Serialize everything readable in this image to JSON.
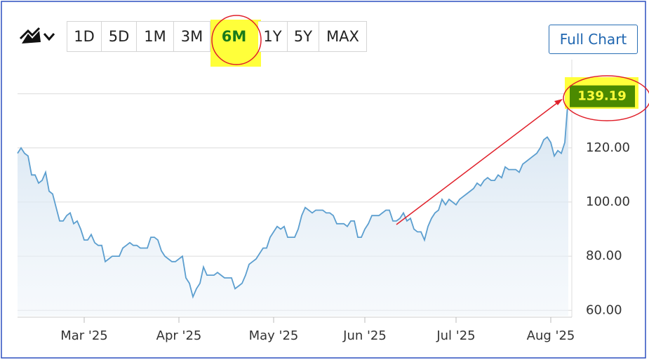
{
  "controls": {
    "ranges": [
      "1D",
      "5D",
      "1M",
      "3M",
      "6M",
      "1Y",
      "5Y",
      "MAX"
    ],
    "full_chart": "Full Chart"
  },
  "chart_data": {
    "type": "line",
    "color": "#5b9ecf",
    "categories": [
      null,
      null,
      null,
      null,
      null,
      null,
      null,
      null,
      null,
      null,
      null,
      null,
      null,
      null,
      null,
      null,
      null,
      null,
      null,
      "Mar '25",
      null,
      null,
      null,
      null,
      null,
      null,
      null,
      null,
      null,
      null,
      null,
      null,
      null,
      null,
      null,
      null,
      null,
      null,
      null,
      null,
      null,
      null,
      null,
      null,
      null,
      null,
      "Apr '25",
      null,
      null,
      null,
      null,
      null,
      null,
      null,
      null,
      null,
      null,
      null,
      null,
      null,
      null,
      null,
      null,
      null,
      null,
      null,
      null,
      null,
      null,
      null,
      null,
      null,
      null,
      "May '25",
      null,
      null,
      null,
      null,
      null,
      null,
      null,
      null,
      null,
      null,
      null,
      null,
      null,
      null,
      null,
      null,
      null,
      null,
      null,
      null,
      null,
      null,
      null,
      null,
      null,
      "Jun '25",
      null,
      null,
      null,
      null,
      null,
      null,
      null,
      null,
      null,
      null,
      null,
      null,
      null,
      null,
      null,
      null,
      null,
      null,
      null,
      null,
      null,
      null,
      null,
      null,
      null,
      "Jul '25",
      null,
      null,
      null,
      null,
      null,
      null,
      null,
      null,
      null,
      null,
      null,
      null,
      null,
      null,
      null,
      null,
      null,
      null,
      null,
      null,
      null,
      null,
      null,
      null,
      null,
      null,
      "Aug '25",
      null,
      null,
      null,
      null,
      null
    ],
    "values": [
      118,
      120,
      118,
      117,
      110,
      110,
      107,
      108,
      111,
      104,
      103,
      98,
      93,
      93,
      95,
      96,
      92,
      93,
      90,
      86,
      86,
      88,
      85,
      84,
      84,
      78,
      79,
      80,
      80,
      80,
      83,
      84,
      85,
      84,
      84,
      83,
      83,
      83,
      87,
      87,
      86,
      82,
      80,
      79,
      78,
      78,
      79,
      80,
      72,
      70,
      65,
      68,
      70,
      76,
      73,
      73,
      73,
      74,
      73,
      72,
      72,
      72,
      68,
      69,
      70,
      73,
      77,
      78,
      79,
      81,
      83,
      83,
      87,
      89,
      91,
      90,
      91,
      87,
      87,
      87,
      90,
      95,
      98,
      97,
      96,
      97,
      97,
      97,
      96,
      96,
      95,
      92,
      92,
      92,
      91,
      93,
      93,
      87,
      87,
      90,
      92,
      95,
      95,
      95,
      96,
      97,
      97,
      93,
      93,
      94,
      96,
      93,
      94,
      90,
      89,
      89,
      86,
      91,
      94,
      96,
      97,
      101,
      99,
      101,
      100,
      99,
      101,
      102,
      103,
      104,
      105,
      107,
      106,
      108,
      109,
      108,
      108,
      110,
      109,
      113,
      112,
      112,
      112,
      111,
      114,
      115,
      116,
      117,
      118,
      120,
      123,
      124,
      122,
      117,
      119,
      118,
      122,
      139.19
    ],
    "ylim": [
      58,
      150
    ],
    "yticks": [
      {
        "value": 60,
        "label": "60.00"
      },
      {
        "value": 80,
        "label": "80.00"
      },
      {
        "value": 100,
        "label": "100.00"
      },
      {
        "value": 120,
        "label": "120.00"
      }
    ],
    "grid": true
  }
}
